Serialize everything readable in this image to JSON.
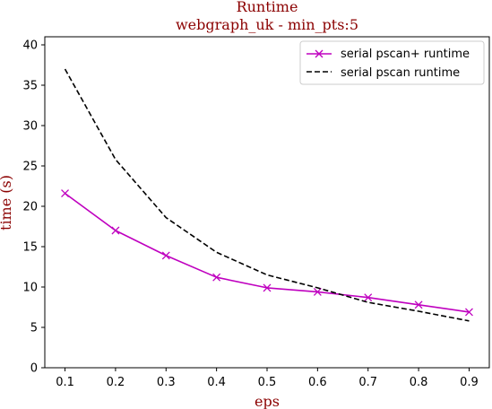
{
  "chart_data": {
    "type": "line",
    "title": "Runtime",
    "subtitle": "webgraph_uk - min_pts:5",
    "xlabel": "eps",
    "ylabel": "time (s)",
    "x": [
      0.1,
      0.2,
      0.3,
      0.4,
      0.5,
      0.6,
      0.7,
      0.8,
      0.9
    ],
    "x_tick_labels": [
      "0.1",
      "0.2",
      "0.3",
      "0.4",
      "0.5",
      "0.6",
      "0.7",
      "0.8",
      "0.9"
    ],
    "xlim": [
      0.06,
      0.94
    ],
    "ylim": [
      0,
      41
    ],
    "y_ticks": [
      0,
      5,
      10,
      15,
      20,
      25,
      30,
      35,
      40
    ],
    "y_tick_labels": [
      "0",
      "5",
      "10",
      "15",
      "20",
      "25",
      "30",
      "35",
      "40"
    ],
    "grid": false,
    "legend_position": "top-right",
    "series": [
      {
        "name": "serial pscan+ runtime",
        "values": [
          21.6,
          17.0,
          13.9,
          11.2,
          9.9,
          9.4,
          8.7,
          7.8,
          6.9
        ],
        "color": "#bf00bf",
        "style": "solid",
        "marker": "x"
      },
      {
        "name": "serial pscan runtime",
        "values": [
          37.0,
          25.8,
          18.6,
          14.3,
          11.5,
          9.9,
          8.1,
          7.0,
          5.8
        ],
        "color": "#000000",
        "style": "dashed",
        "marker": "none"
      }
    ]
  }
}
